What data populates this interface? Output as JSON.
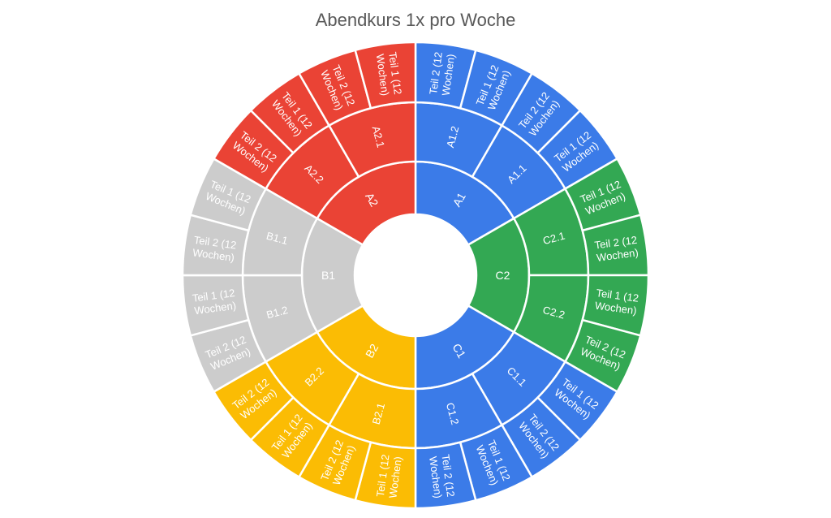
{
  "chart_data": {
    "type": "sunburst",
    "title": "Abendkurs 1x pro Woche",
    "colors": {
      "A1": "#3b7be8",
      "C2": "#33a853",
      "C1": "#3b7be8",
      "B2": "#fbbc04",
      "B1": "#cccccc",
      "A2": "#ea4335"
    },
    "levels": [
      {
        "name": "A1",
        "value": 4,
        "children": [
          {
            "name": "A1.1",
            "value": 2,
            "children": [
              {
                "name": "Teil 1 (12 Wochen)",
                "value": 1
              },
              {
                "name": "Teil 2 (12 Wochen)",
                "value": 1
              }
            ]
          },
          {
            "name": "A1.2",
            "value": 2,
            "children": [
              {
                "name": "Teil 1 (12 Wochen)",
                "value": 1
              },
              {
                "name": "Teil 2 (12 Wochen)",
                "value": 1
              }
            ]
          }
        ]
      },
      {
        "name": "A2",
        "value": 4,
        "children": [
          {
            "name": "A2.1",
            "value": 2,
            "children": [
              {
                "name": "Teil 1 (12 Wochen)",
                "value": 1
              },
              {
                "name": "Teil 2 (12 Wochen)",
                "value": 1
              }
            ]
          },
          {
            "name": "A2.2",
            "value": 2,
            "children": [
              {
                "name": "Teil 1 (12 Wochen)",
                "value": 1
              },
              {
                "name": "Teil 2 (12 Wochen)",
                "value": 1
              }
            ]
          }
        ]
      },
      {
        "name": "B1",
        "value": 4,
        "children": [
          {
            "name": "B1.1",
            "value": 2,
            "children": [
              {
                "name": "Teil 1 (12 Wochen)",
                "value": 1
              },
              {
                "name": "Teil 2 (12 Wochen)",
                "value": 1
              }
            ]
          },
          {
            "name": "B1.2",
            "value": 2,
            "children": [
              {
                "name": "Teil 1 (12 Wochen)",
                "value": 1
              },
              {
                "name": "Teil 2 (12 Wochen)",
                "value": 1
              }
            ]
          }
        ]
      },
      {
        "name": "B2",
        "value": 4,
        "children": [
          {
            "name": "B2.1",
            "value": 2,
            "children": [
              {
                "name": "Teil 1 (12 Wochen)",
                "value": 1
              },
              {
                "name": "Teil 2 (12 Wochen)",
                "value": 1
              }
            ]
          },
          {
            "name": "B2.2",
            "value": 2,
            "children": [
              {
                "name": "Teil 1 (12 Wochen)",
                "value": 1
              },
              {
                "name": "Teil 2 (12 Wochen)",
                "value": 1
              }
            ]
          }
        ]
      },
      {
        "name": "C1",
        "value": 4,
        "children": [
          {
            "name": "C1.1",
            "value": 2,
            "children": [
              {
                "name": "Teil 1 (12 Wochen)",
                "value": 1
              },
              {
                "name": "Teil 2 (12 Wochen)",
                "value": 1
              }
            ]
          },
          {
            "name": "C1.2",
            "value": 2,
            "children": [
              {
                "name": "Teil 1 (12 Wochen)",
                "value": 1
              },
              {
                "name": "Teil 2 (12 Wochen)",
                "value": 1
              }
            ]
          }
        ]
      },
      {
        "name": "C2",
        "value": 4,
        "children": [
          {
            "name": "C2.1",
            "value": 2,
            "children": [
              {
                "name": "Teil 1 (12 Wochen)",
                "value": 1
              },
              {
                "name": "Teil 2 (12 Wochen)",
                "value": 1
              }
            ]
          },
          {
            "name": "C2.2",
            "value": 2,
            "children": [
              {
                "name": "Teil 1 (12 Wochen)",
                "value": 1
              },
              {
                "name": "Teil 2 (12 Wochen)",
                "value": 1
              }
            ]
          }
        ]
      }
    ],
    "display_order": [
      "A1",
      "C2",
      "C1",
      "B2",
      "B1",
      "A2"
    ],
    "child_reversed": [
      "A1",
      "A2",
      "B1"
    ]
  }
}
